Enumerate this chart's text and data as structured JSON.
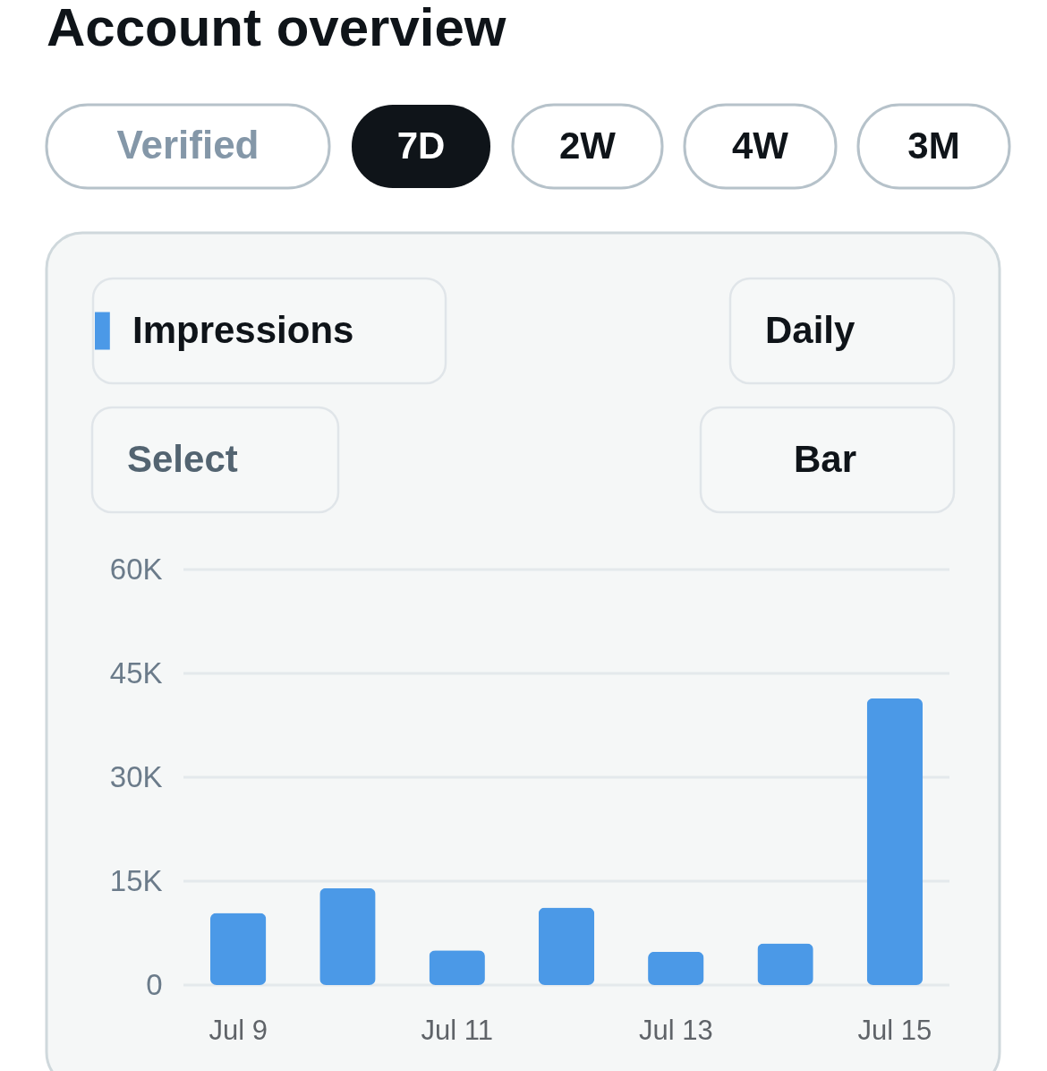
{
  "chart_data": {
    "type": "bar",
    "title": "Account overview",
    "annotations": [
      "Verified",
      "7D",
      "2W",
      "4W",
      "3M",
      "Daily",
      "Select",
      "Bar"
    ],
    "categories": [
      "Jul 9",
      null,
      "Jul 11",
      null,
      "Jul 13",
      null,
      "Jul 15"
    ],
    "series": [
      {
        "name": "Impressions",
        "color": "#4b99e7",
        "values": [
          10400,
          14000,
          5000,
          11200,
          4800,
          6000,
          41400
        ]
      }
    ],
    "ylim": [
      0,
      60000
    ],
    "yticks": [
      0,
      {
        "value": 15000,
        "label": "15K"
      },
      {
        "value": 30000,
        "label": "30K"
      },
      {
        "value": 45000,
        "label": "45K"
      },
      {
        "value": 60000,
        "label": "60K"
      }
    ],
    "grid": "y",
    "legend": "top left"
  }
}
